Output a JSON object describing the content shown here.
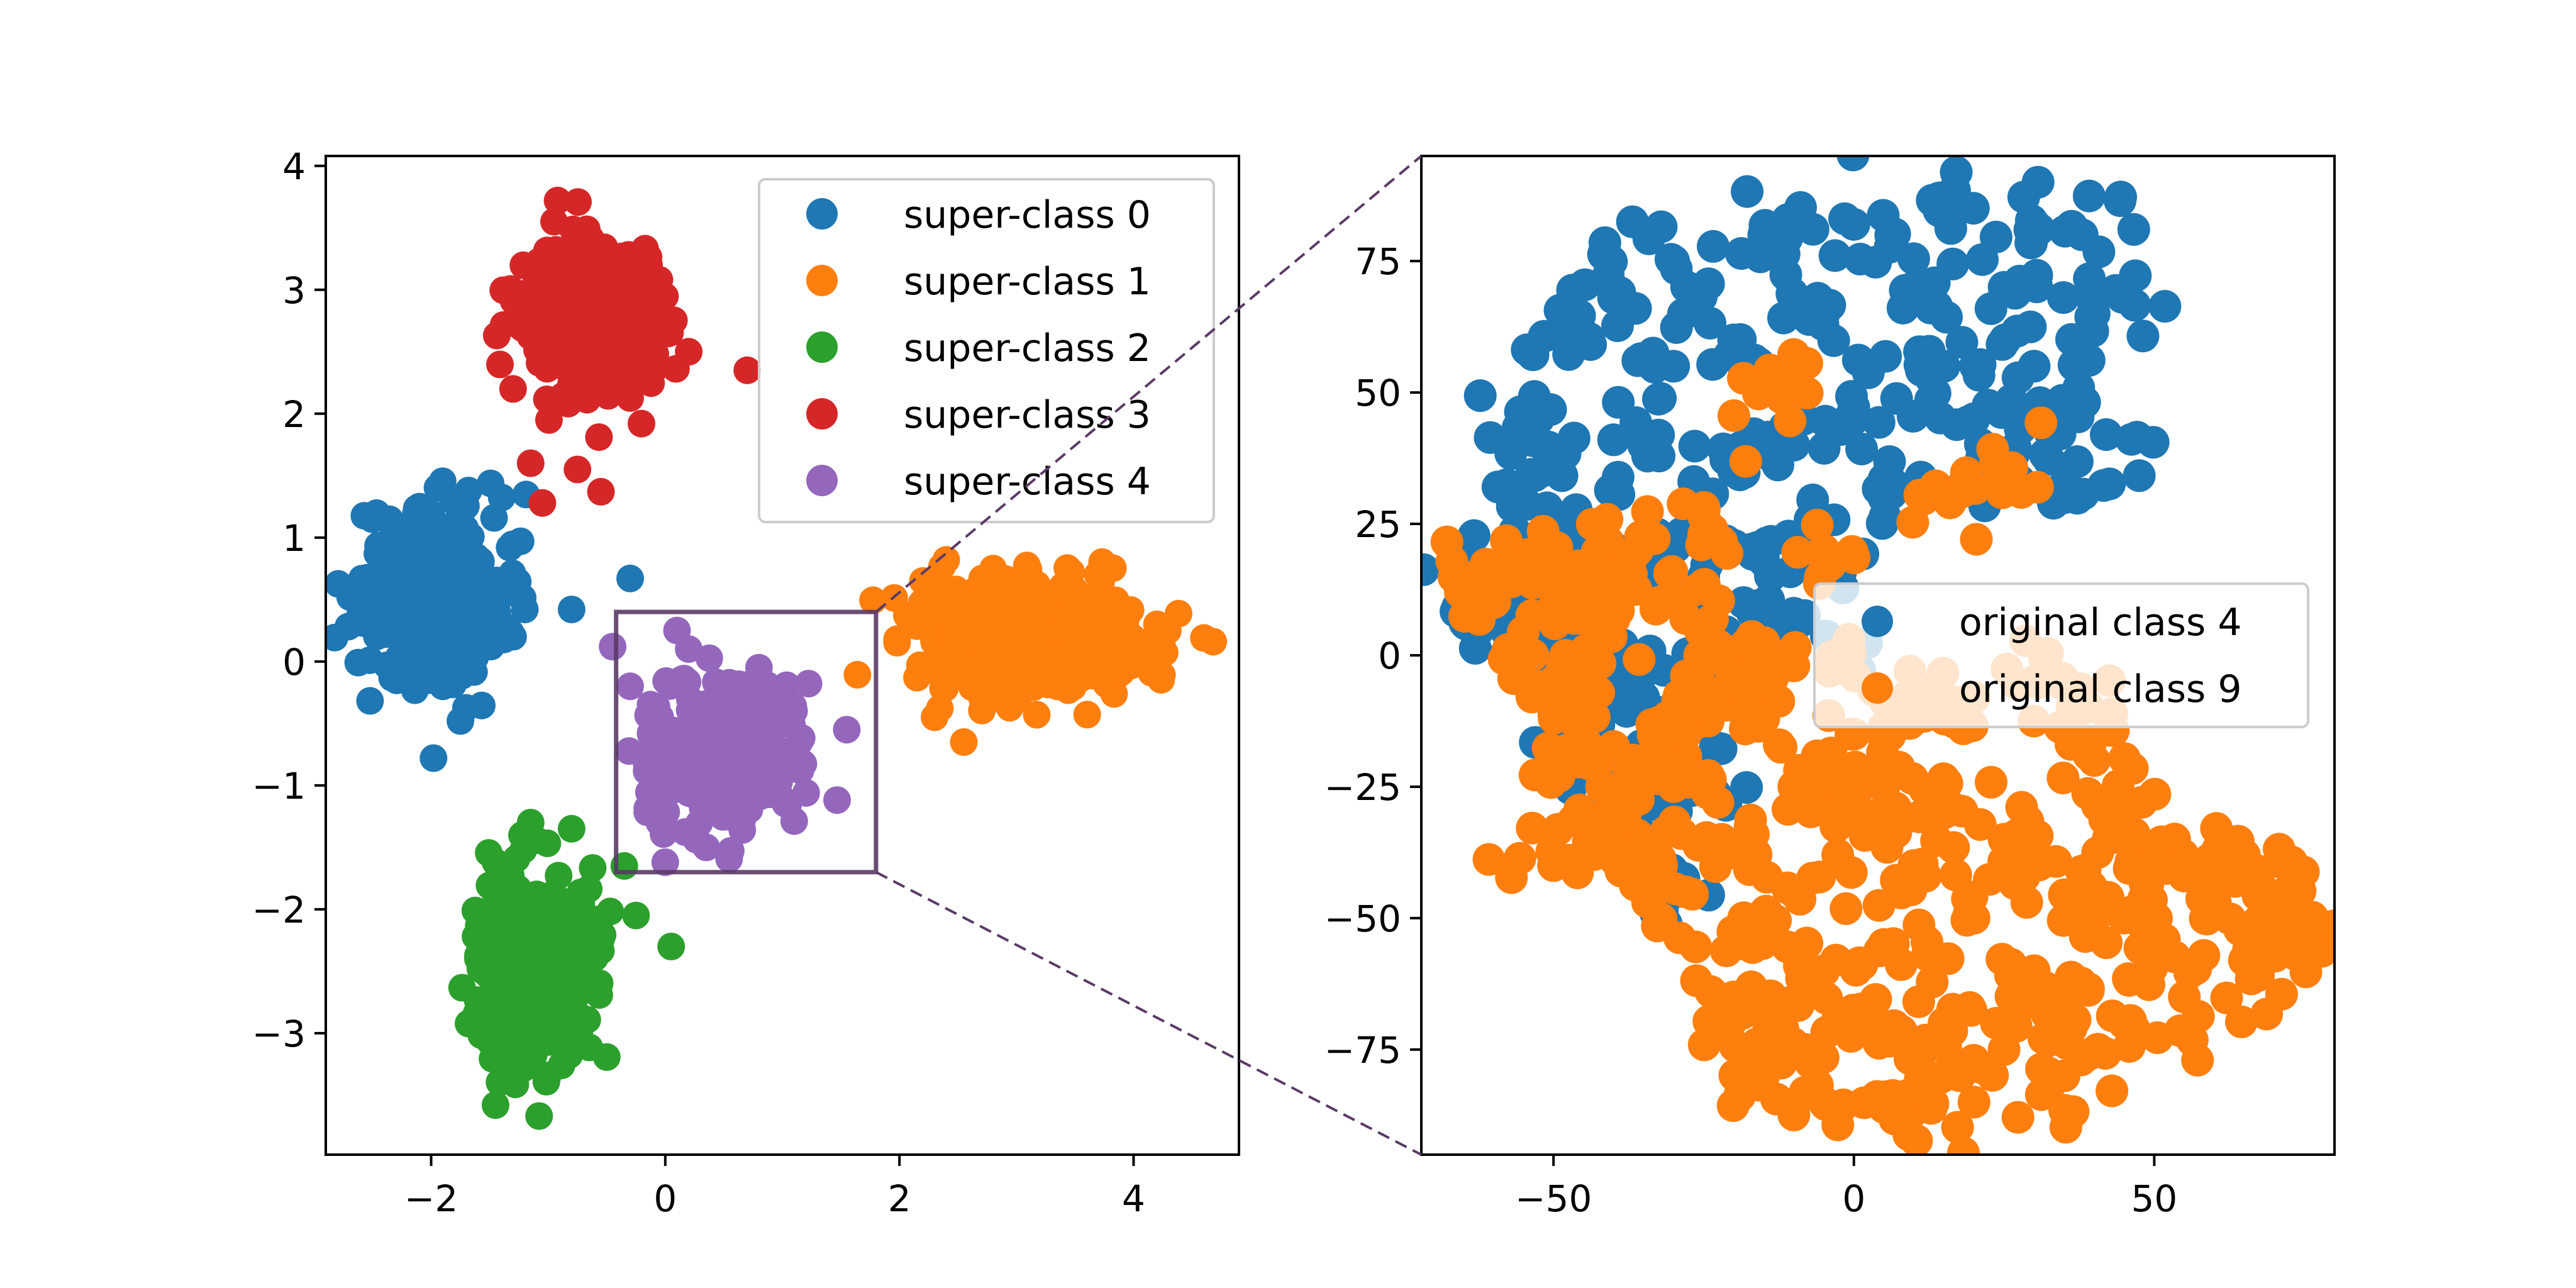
{
  "chart_data": [
    {
      "type": "scatter",
      "title": "",
      "xlabel": "",
      "ylabel": "",
      "xlim": [
        -2.9,
        4.9
      ],
      "ylim": [
        -3.98,
        4.08
      ],
      "xticks": [
        -2,
        0,
        2,
        4
      ],
      "yticks": [
        -3,
        -2,
        -1,
        0,
        1,
        2,
        3,
        4
      ],
      "xtick_labels": [
        "−2",
        "0",
        "2",
        "4"
      ],
      "ytick_labels": [
        "−3",
        "−2",
        "−1",
        "0",
        "1",
        "2",
        "3",
        "4"
      ],
      "grid": false,
      "legend_position": "upper right",
      "series": [
        {
          "name": "super-class 0",
          "color": "#1f77b4",
          "center": [
            -2.0,
            0.5
          ],
          "spread": [
            0.3,
            0.35
          ],
          "points": [
            [
              -2.6,
              0.62
            ],
            [
              -2.1,
              1.25
            ],
            [
              -1.68,
              1.38
            ],
            [
              -1.33,
              0.92
            ],
            [
              -1.2,
              0.42
            ],
            [
              -0.8,
              0.42
            ],
            [
              -1.75,
              -0.48
            ],
            [
              -1.98,
              -0.78
            ],
            [
              -2.2,
              0.1
            ],
            [
              -1.9,
              -0.2
            ],
            [
              -2.4,
              0.8
            ],
            [
              -1.5,
              0.6
            ],
            [
              -1.3,
              0.2
            ],
            [
              -0.3,
              0.67
            ]
          ]
        },
        {
          "name": "super-class 1",
          "color": "#ff7f0e",
          "center": [
            3.1,
            0.2
          ],
          "spread": [
            0.5,
            0.25
          ],
          "points": [
            [
              2.2,
              0.65
            ],
            [
              2.4,
              0.82
            ],
            [
              1.98,
              0.18
            ],
            [
              2.55,
              -0.65
            ],
            [
              2.3,
              -0.45
            ],
            [
              3.5,
              0.45
            ],
            [
              4.2,
              0.3
            ],
            [
              4.6,
              0.19
            ],
            [
              3.0,
              -0.3
            ],
            [
              2.8,
              0.75
            ]
          ]
        },
        {
          "name": "super-class 2",
          "color": "#2ca02c",
          "center": [
            -1.1,
            -2.5
          ],
          "spread": [
            0.22,
            0.38
          ],
          "points": [
            [
              -1.15,
              -1.3
            ],
            [
              -0.8,
              -1.35
            ],
            [
              -1.45,
              -1.62
            ],
            [
              -0.35,
              -1.65
            ],
            [
              -0.25,
              -2.05
            ],
            [
              0.05,
              -2.3
            ],
            [
              -1.45,
              -3.58
            ],
            [
              -1.35,
              -3.35
            ],
            [
              -0.8,
              -2.7
            ],
            [
              -1.6,
              -2.4
            ]
          ]
        },
        {
          "name": "super-class 3",
          "color": "#d62728",
          "center": [
            -0.65,
            2.75
          ],
          "spread": [
            0.28,
            0.3
          ],
          "points": [
            [
              -0.92,
              3.72
            ],
            [
              -0.95,
              3.55
            ],
            [
              -1.3,
              2.2
            ],
            [
              -1.15,
              1.6
            ],
            [
              -1.05,
              1.28
            ],
            [
              -0.55,
              1.37
            ],
            [
              -0.05,
              2.65
            ],
            [
              0.2,
              2.5
            ],
            [
              0.7,
              2.35
            ],
            [
              -0.75,
              1.55
            ]
          ]
        },
        {
          "name": "super-class 4",
          "color": "#9467bd",
          "center": [
            0.5,
            -0.75
          ],
          "spread": [
            0.3,
            0.28
          ],
          "points": [
            [
              0.1,
              0.25
            ],
            [
              0.2,
              0.1
            ],
            [
              -0.45,
              0.12
            ],
            [
              -0.3,
              -0.2
            ],
            [
              0.8,
              -0.05
            ],
            [
              1.1,
              -0.4
            ],
            [
              1.55,
              -0.55
            ],
            [
              0.35,
              -1.5
            ],
            [
              0.0,
              -1.62
            ],
            [
              -0.05,
              -1.3
            ]
          ]
        }
      ]
    },
    {
      "type": "scatter",
      "title": "",
      "xlabel": "",
      "ylabel": "",
      "xlim": [
        -72,
        80
      ],
      "ylim": [
        -95,
        95
      ],
      "xticks": [
        -50,
        0,
        50
      ],
      "yticks": [
        -75,
        -50,
        -25,
        0,
        25,
        50,
        75
      ],
      "xtick_labels": [
        "−50",
        "0",
        "50"
      ],
      "ytick_labels": [
        "−75",
        "−50",
        "−25",
        "0",
        "25",
        "50",
        "75"
      ],
      "grid": false,
      "legend_position": "center right",
      "series": [
        {
          "name": "original class 4",
          "color": "#1f77b4",
          "points": [
            [
              -55,
              45
            ],
            [
              -48,
              60
            ],
            [
              -40,
              68
            ],
            [
              -30,
              75
            ],
            [
              -15,
              80
            ],
            [
              0,
              82
            ],
            [
              15,
              84
            ],
            [
              30,
              82
            ],
            [
              38,
              80
            ],
            [
              40,
              65
            ],
            [
              42,
              42
            ],
            [
              35,
              30
            ],
            [
              25,
              32
            ],
            [
              20,
              45
            ],
            [
              5,
              30
            ],
            [
              -5,
              20
            ],
            [
              -15,
              18
            ],
            [
              -25,
              15
            ],
            [
              -35,
              18
            ],
            [
              -45,
              22
            ],
            [
              -55,
              18
            ],
            [
              -62,
              12
            ],
            [
              -60,
              8
            ],
            [
              -50,
              5
            ],
            [
              -45,
              -3
            ],
            [
              -40,
              -5
            ],
            [
              -35,
              -8
            ],
            [
              -28,
              -12
            ],
            [
              -25,
              -25
            ],
            [
              -33,
              -35
            ],
            [
              -32,
              -42
            ],
            [
              -38,
              -28
            ],
            [
              -45,
              -15
            ],
            [
              -52,
              35
            ],
            [
              -50,
              25
            ],
            [
              -30,
              55
            ],
            [
              -20,
              60
            ],
            [
              -5,
              65
            ],
            [
              10,
              70
            ],
            [
              25,
              70
            ],
            [
              30,
              55
            ],
            [
              0,
              45
            ],
            [
              -10,
              40
            ],
            [
              -20,
              35
            ],
            [
              -35,
              40
            ],
            [
              15,
              55
            ],
            [
              30,
              45
            ],
            [
              -15,
              5
            ],
            [
              -10,
              8
            ],
            [
              -22,
              2
            ]
          ]
        },
        {
          "name": "original class 9",
          "color": "#ff7f0e",
          "points": [
            [
              -12,
              49
            ],
            [
              16,
              29
            ],
            [
              25,
              34
            ],
            [
              -25,
              23
            ],
            [
              -5,
              20
            ],
            [
              -28,
              7
            ],
            [
              -63,
              15
            ],
            [
              -57,
              14
            ],
            [
              -60,
              10
            ],
            [
              -48,
              15
            ],
            [
              -45,
              12
            ],
            [
              -43,
              18
            ],
            [
              -38,
              15
            ],
            [
              -36,
              20
            ],
            [
              -48,
              0
            ],
            [
              -50,
              -5
            ],
            [
              -44,
              -8
            ],
            [
              -46,
              -18
            ],
            [
              -42,
              -25
            ],
            [
              -38,
              -30
            ],
            [
              -50,
              -40
            ],
            [
              -40,
              -38
            ],
            [
              -32,
              -40
            ],
            [
              -22,
              -35
            ],
            [
              -18,
              -55
            ],
            [
              -20,
              -65
            ],
            [
              -22,
              -72
            ],
            [
              -15,
              -80
            ],
            [
              -5,
              -85
            ],
            [
              5,
              -86
            ],
            [
              20,
              -85
            ],
            [
              35,
              -80
            ],
            [
              45,
              -70
            ],
            [
              55,
              -65
            ],
            [
              65,
              -58
            ],
            [
              70,
              -52
            ],
            [
              75,
              -51
            ],
            [
              72,
              -45
            ],
            [
              65,
              -38
            ],
            [
              55,
              -42
            ],
            [
              45,
              -30
            ],
            [
              40,
              -20
            ],
            [
              38,
              -10
            ],
            [
              30,
              -5
            ],
            [
              20,
              -8
            ],
            [
              10,
              -10
            ],
            [
              0,
              -15
            ],
            [
              -5,
              -20
            ],
            [
              -10,
              -25
            ],
            [
              -15,
              -12
            ],
            [
              -20,
              -5
            ],
            [
              -25,
              -8
            ],
            [
              -18,
              2
            ],
            [
              -10,
              -2
            ],
            [
              0,
              -30
            ],
            [
              10,
              -40
            ],
            [
              20,
              -50
            ],
            [
              30,
              -60
            ],
            [
              40,
              -45
            ],
            [
              15,
              -70
            ],
            [
              -5,
              -60
            ],
            [
              -10,
              -45
            ],
            [
              5,
              -55
            ],
            [
              25,
              -35
            ],
            [
              50,
              -55
            ],
            [
              60,
              -45
            ],
            [
              -28,
              -15
            ],
            [
              -30,
              -25
            ],
            [
              -35,
              -20
            ],
            [
              0,
              -70
            ],
            [
              10,
              -75
            ],
            [
              25,
              -75
            ],
            [
              35,
              -65
            ],
            [
              -8,
              -75
            ],
            [
              -28,
              -45
            ],
            [
              5,
              -25
            ],
            [
              15,
              -30
            ],
            [
              30,
              -40
            ],
            [
              50,
              -40
            ],
            [
              45,
              -50
            ]
          ]
        }
      ]
    }
  ]
}
